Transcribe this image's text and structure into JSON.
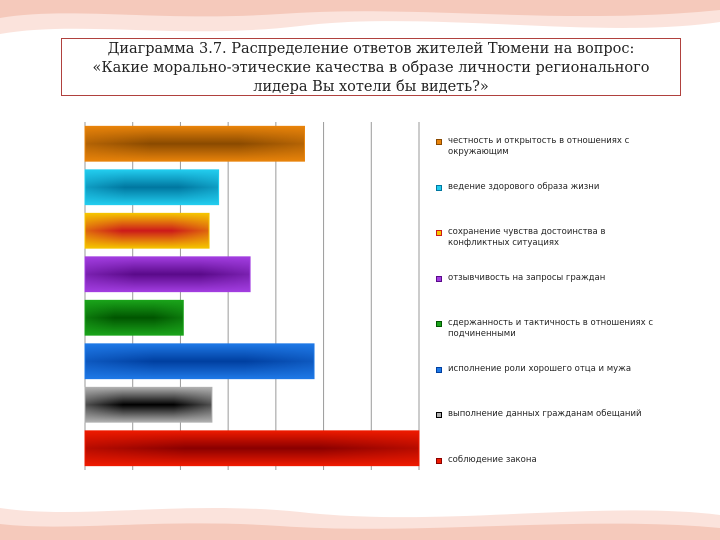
{
  "title": {
    "line1": "Диаграмма 3.7. Распределение ответов жителей Тюмени на вопрос:",
    "line2": "«Какие морально-этические качества в образе личности регионального",
    "line3": "лидера Вы хотели бы видеть?»"
  },
  "colors": {
    "frame": "#b0413e",
    "grid": "#9a9a9a",
    "wave_light": "#fbe3dc",
    "wave_mid": "#f5c9bb"
  },
  "chart_data": {
    "type": "bar",
    "orientation": "horizontal",
    "title": "Диаграмма 3.7. Распределение ответов жителей Тюмени на вопрос: «Какие морально-этические качества в образе личности регионального лидера Вы хотели бы видеть?»",
    "xlim": [
      0,
      35
    ],
    "grid": true,
    "legend_position": "right",
    "categories": [
      "честность и открытость в отношениях с окружающим",
      "ведение здорового образа жизни",
      "сохранение чувства достоинства в конфликтных ситуациях",
      "отзывчивость на запросы граждан",
      "сдержанность и тактичность в отношениях с подчиненными",
      "исполнение роли хорошего отца и мужа",
      "выполнение данных гражданам обещаний",
      "соблюдение закона"
    ],
    "values": [
      23,
      14,
      13,
      17.3,
      10.3,
      24,
      13.3,
      35
    ],
    "colors": [
      "#e8830a",
      "#22ccee",
      "#f5c400",
      "#a23de0",
      "#1aa31a",
      "#1e78e6",
      "#b0b0b0",
      "#ee1a00"
    ],
    "bar_centers": [
      "#8a4a00",
      "#0077a0",
      "#cc1a1a",
      "#5a0a8a",
      "#005500",
      "#003fa0",
      "#000000",
      "#8a0000"
    ],
    "legend_first_lines": [
      "честность и открытость в отношениях с",
      "ведение здорового образа жизни",
      "сохранение чувства достоинства в",
      "отзывчивость на запросы граждан",
      "сдержанность и тактичность в отношениях с",
      "исполнение роли хорошего отца и мужа",
      "выполнение данных гражданам обещаний",
      "соблюдение закона"
    ],
    "legend_second_lines": [
      "окружающим",
      "",
      "конфликтных ситуациях",
      "",
      "подчиненными",
      "",
      "",
      ""
    ]
  }
}
